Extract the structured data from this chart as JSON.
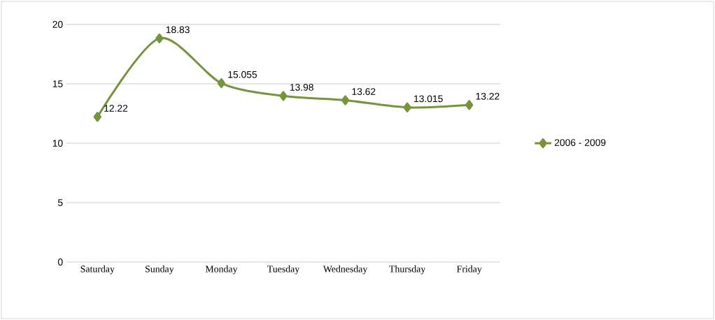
{
  "chart_data": {
    "type": "line",
    "categories": [
      "Saturday",
      "Sunday",
      "Monday",
      "Tuesday",
      "Wednesday",
      "Thursday",
      "Friday"
    ],
    "series": [
      {
        "name": "2006 - 2009",
        "color": "#77933c",
        "values": [
          12.22,
          18.83,
          15.055,
          13.98,
          13.62,
          13.015,
          13.22
        ]
      }
    ],
    "ylim": [
      0,
      20
    ],
    "yticks": [
      0,
      5,
      10,
      15,
      20
    ],
    "grid": "y",
    "legend": "right",
    "marker": "diamond",
    "line_style": "solid",
    "data_labels": true
  }
}
